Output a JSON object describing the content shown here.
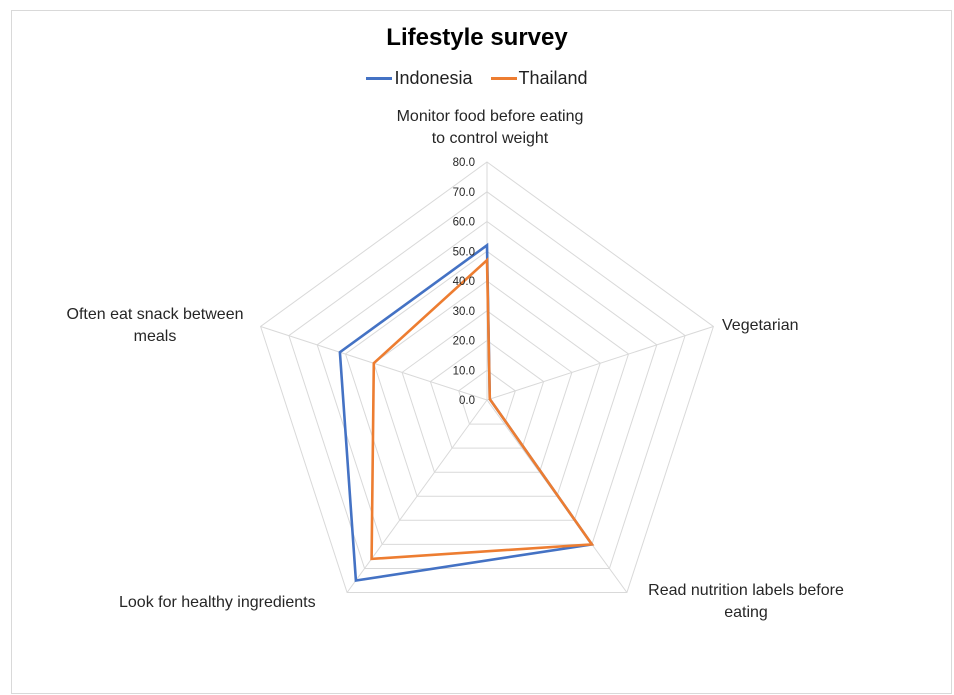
{
  "chart_data": {
    "type": "radar",
    "title": "Lifestyle survey",
    "categories": [
      "Monitor food before eating to control weight",
      "Vegetarian",
      "Read nutrition labels before eating",
      "Look for healthy ingredients",
      "Often eat snack between meals"
    ],
    "series": [
      {
        "name": "Indonesia",
        "color": "#4472C4",
        "values": [
          52,
          1,
          60,
          75,
          52
        ]
      },
      {
        "name": "Thailand",
        "color": "#ED7D31",
        "values": [
          47,
          1,
          60,
          66,
          40
        ]
      }
    ],
    "r_ticks": [
      "0.0",
      "10.0",
      "20.0",
      "30.0",
      "40.0",
      "50.0",
      "60.0",
      "70.0",
      "80.0"
    ],
    "rlim": [
      0,
      80
    ],
    "grid": true,
    "legend_position": "top"
  },
  "labels": {
    "cat0_line1": "Monitor food before eating",
    "cat0_line2": "to control weight",
    "cat1_line1": "Vegetarian",
    "cat2_line1": "Read nutrition labels before",
    "cat2_line2": "eating",
    "cat3_line1": "Look for healthy ingredients",
    "cat4_line1": "Often eat snack between",
    "cat4_line2": "meals"
  }
}
